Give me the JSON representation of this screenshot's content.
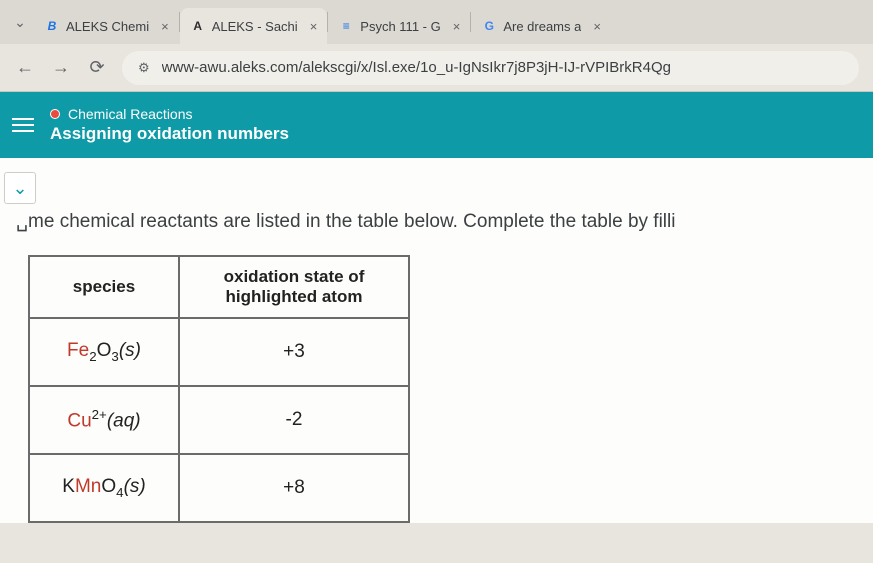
{
  "browser": {
    "tabs": [
      {
        "title": "ALEKS Chemi",
        "favicon": "B",
        "favicon_color": "#1a73e8",
        "active": false
      },
      {
        "title": "ALEKS - Sachi",
        "favicon": "A",
        "favicon_color": "#2c2c2c",
        "active": true
      },
      {
        "title": "Psych 111 - G",
        "favicon": "≡",
        "favicon_color": "#1a73e8",
        "active": false
      },
      {
        "title": "Are dreams a",
        "favicon": "G",
        "favicon_color": "#4285f4",
        "active": false
      }
    ],
    "url": "www-awu.aleks.com/alekscgi/x/Isl.exe/1o_u-IgNsIkr7j8P3jH-IJ-rVPIBrkR4Qg"
  },
  "header": {
    "category": "Chemical Reactions",
    "topic": "Assigning oxidation numbers"
  },
  "prompt_text": "␣me chemical reactants are listed in the table below. Complete the table by filli",
  "table": {
    "col1": "species",
    "col2": "oxidation state of highlighted atom",
    "rows": [
      {
        "species_html": "<span class='hl'>Fe</span><sub>2</sub><span class='rest'>O</span><sub>3</sub><span class='phase'>(s)</span>",
        "value": "+3"
      },
      {
        "species_html": "<span class='hl'>Cu</span><sup>2+</sup><span class='phase'>(aq)</span>",
        "value": "-2"
      },
      {
        "species_html": "<span class='rest'>K</span><span class='hl'>Mn</span><span class='rest'>O</span><sub>4</sub><span class='phase'>(s)</span>",
        "value": "+8"
      }
    ]
  }
}
